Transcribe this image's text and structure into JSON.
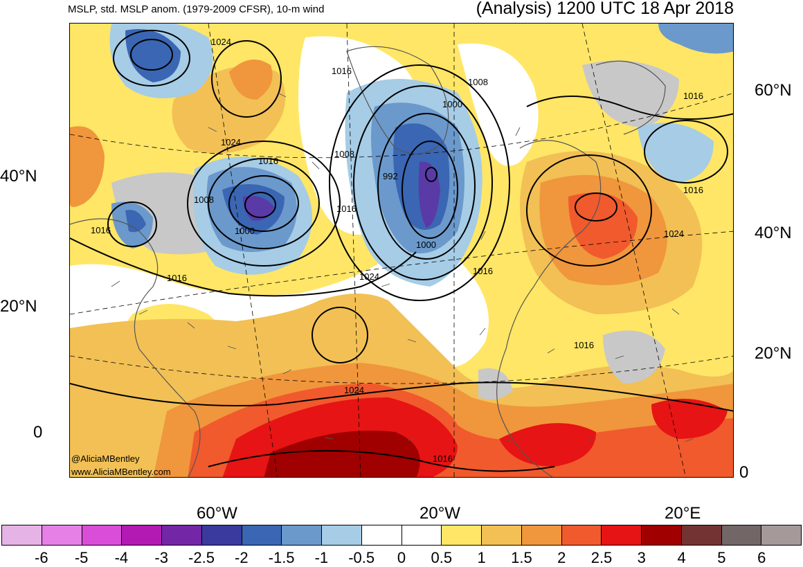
{
  "header": {
    "left_title": "MSLP, std. MSLP anom. (1979-2009 CFSR), 10-m wind",
    "right_title": "(Analysis) 1200 UTC 18 Apr 2018"
  },
  "axes": {
    "left_lat_labels": [
      "40°N",
      "20°N",
      "0"
    ],
    "right_lat_labels": [
      "60°N",
      "40°N",
      "20°N",
      "0"
    ],
    "lon_labels": [
      "60°W",
      "20°W",
      "20°E"
    ]
  },
  "isobar_labels": [
    "1024",
    "1016",
    "1008",
    "1000",
    "1024",
    "1016",
    "1008",
    "1016",
    "1000",
    "1008",
    "992",
    "1000",
    "1016",
    "1024",
    "1016",
    "1016",
    "1024",
    "1016",
    "1016",
    "1016",
    "1024",
    "1016"
  ],
  "credit": {
    "handle": "@AliciaMBentley",
    "website": "www.AliciaMBentley.com"
  },
  "colorbar": {
    "colors": [
      "#e6b3e6",
      "#e680e6",
      "#d94dd9",
      "#b31ab3",
      "#7326a6",
      "#3a3a9e",
      "#3a66b3",
      "#6b99cc",
      "#a6cce6",
      "#ffffff",
      "#ffffff",
      "#ffe666",
      "#f2c055",
      "#f0963c",
      "#f05a2d",
      "#e61414",
      "#a00000",
      "#733333",
      "#736666",
      "#a69999"
    ],
    "labels": [
      "-6",
      "-5",
      "-4",
      "-3",
      "-2.5",
      "-2",
      "-1.5",
      "-1",
      "-0.5",
      "0",
      "0.5",
      "1",
      "1.5",
      "2",
      "2.5",
      "3",
      "4",
      "5",
      "6"
    ]
  }
}
